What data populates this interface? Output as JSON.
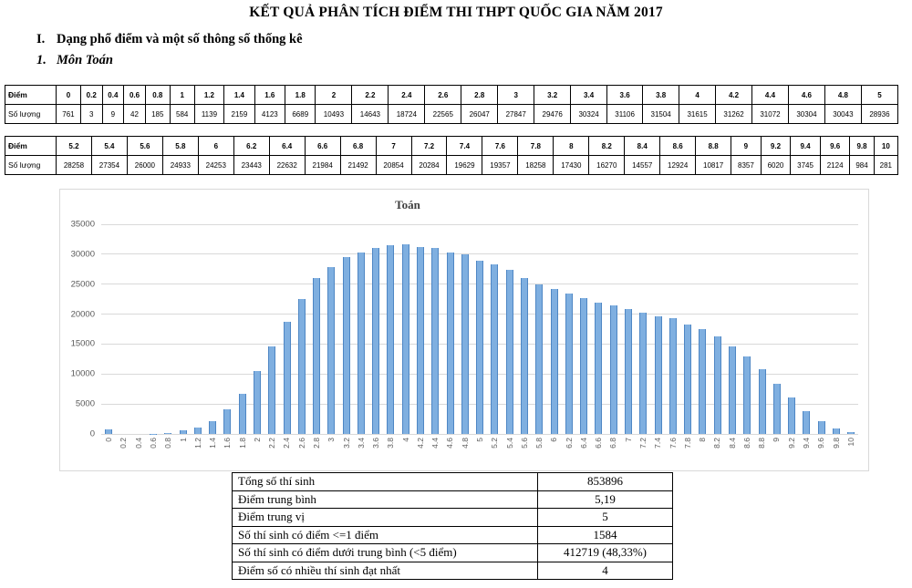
{
  "page": {
    "title": "KẾT QUẢ PHÂN TÍCH ĐIỂM THI THPT QUỐC GIA NĂM 2017",
    "heading1": {
      "num": "I.",
      "text": "Dạng phổ điểm và một số thông số thống kê"
    },
    "heading2": {
      "num": "1.",
      "text": "Môn Toán"
    }
  },
  "score_tables": [
    {
      "score_label": "Điểm",
      "count_label": "Số lượng",
      "scores": [
        "0",
        "0.2",
        "0.4",
        "0.6",
        "0.8",
        "1",
        "1.2",
        "1.4",
        "1.6",
        "1.8",
        "2",
        "2.2",
        "2.4",
        "2.6",
        "2.8",
        "3",
        "3.2",
        "3.4",
        "3.6",
        "3.8",
        "4",
        "4.2",
        "4.4",
        "4.6",
        "4.8",
        "5"
      ],
      "counts": [
        "761",
        "3",
        "9",
        "42",
        "185",
        "584",
        "1139",
        "2159",
        "4123",
        "6689",
        "10493",
        "14643",
        "18724",
        "22565",
        "26047",
        "27847",
        "29476",
        "30324",
        "31106",
        "31504",
        "31615",
        "31262",
        "31072",
        "30304",
        "30043",
        "28936"
      ]
    },
    {
      "score_label": "Điểm",
      "count_label": "Số lượng",
      "scores": [
        "5.2",
        "5.4",
        "5.6",
        "5.8",
        "6",
        "6.2",
        "6.4",
        "6.6",
        "6.8",
        "7",
        "7.2",
        "7.4",
        "7.6",
        "7.8",
        "8",
        "8.2",
        "8.4",
        "8.6",
        "8.8",
        "9",
        "9.2",
        "9.4",
        "9.6",
        "9.8",
        "10"
      ],
      "counts": [
        "28258",
        "27354",
        "26000",
        "24933",
        "24253",
        "23443",
        "22632",
        "21984",
        "21492",
        "20854",
        "20284",
        "19629",
        "19357",
        "18258",
        "17430",
        "16270",
        "14557",
        "12924",
        "10817",
        "8357",
        "6020",
        "3745",
        "2124",
        "984",
        "281"
      ]
    }
  ],
  "chart_data": {
    "type": "bar",
    "title": "Toán",
    "categories": [
      "0",
      "0.2",
      "0.4",
      "0.6",
      "0.8",
      "1",
      "1.2",
      "1.4",
      "1.6",
      "1.8",
      "2",
      "2.2",
      "2.4",
      "2.6",
      "2.8",
      "3",
      "3.2",
      "3.4",
      "3.6",
      "3.8",
      "4",
      "4.2",
      "4.4",
      "4.6",
      "4.8",
      "5",
      "5.2",
      "5.4",
      "5.6",
      "5.8",
      "6",
      "6.2",
      "6.4",
      "6.6",
      "6.8",
      "7",
      "7.2",
      "7.4",
      "7.6",
      "7.8",
      "8",
      "8.2",
      "8.4",
      "8.6",
      "8.8",
      "9",
      "9.2",
      "9.4",
      "9.6",
      "9.8",
      "10"
    ],
    "values": [
      761,
      3,
      9,
      42,
      185,
      584,
      1139,
      2159,
      4123,
      6689,
      10493,
      14643,
      18724,
      22565,
      26047,
      27847,
      29476,
      30324,
      31106,
      31504,
      31615,
      31262,
      31072,
      30304,
      30043,
      28936,
      28258,
      27354,
      26000,
      24933,
      24253,
      23443,
      22632,
      21984,
      21492,
      20854,
      20284,
      19629,
      19357,
      18258,
      17430,
      16270,
      14557,
      12924,
      10817,
      8357,
      6020,
      3745,
      2124,
      984,
      281
    ],
    "xlabel": "",
    "ylabel": "",
    "ylim": [
      0,
      35000
    ],
    "yticks": [
      0,
      5000,
      10000,
      15000,
      20000,
      25000,
      30000,
      35000
    ],
    "grid": true,
    "legend": "none",
    "bar_color": "#7FAFE0",
    "bar_border_color": "#4E86C4",
    "gridline_color": "#D9D9D9",
    "axis_text_color": "#595959"
  },
  "summary_table": {
    "rows": [
      {
        "label": "Tổng số thí sinh",
        "value": "853896"
      },
      {
        "label": "Điểm trung bình",
        "value": "5,19"
      },
      {
        "label": "Điểm trung vị",
        "value": "5"
      },
      {
        "label": "Số thí sinh có điểm <=1 điểm",
        "value": "1584"
      },
      {
        "label": "Số thí sinh có điểm dưới trung bình (<5 điểm)",
        "value": "412719 (48,33%)"
      },
      {
        "label": "Điểm số có nhiều thí sinh đạt nhất",
        "value": "4"
      }
    ]
  }
}
